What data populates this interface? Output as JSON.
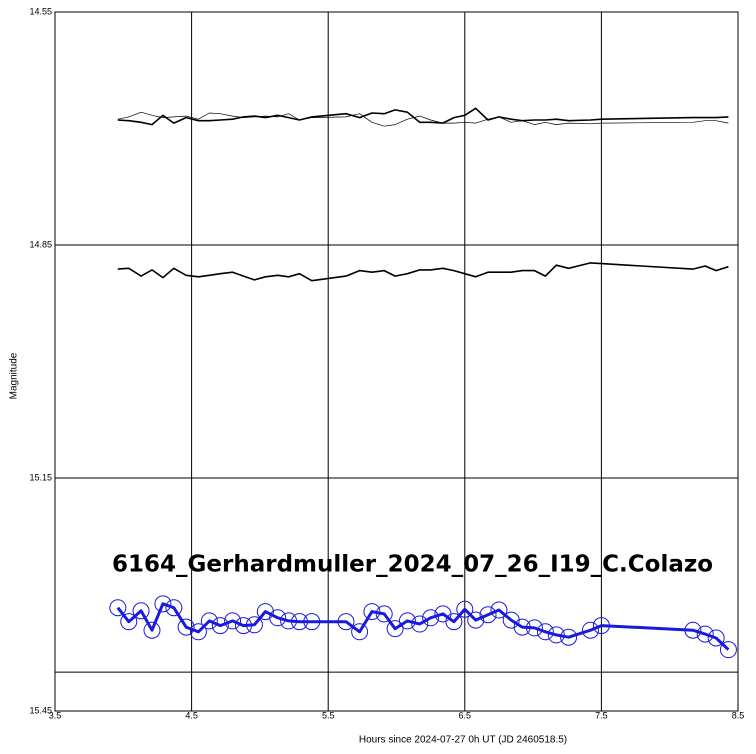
{
  "chart_data": {
    "type": "line",
    "annotation": "6164_Gerhardmuller_2024_07_26_I19_C.Colazo",
    "annotation_color": "#1a1adb",
    "x_label": "Hours since 2024-07-27 0h UT (JD 2460518.5)",
    "y_label": "Magnitude",
    "xlim": [
      3.5,
      8.5
    ],
    "xticks": [
      3.5,
      4.5,
      5.5,
      6.5,
      7.5,
      8.5
    ],
    "ylim": [
      15.45,
      14.55
    ],
    "yticks": [
      14.55,
      14.85,
      15.15,
      15.45
    ],
    "y_inverted": true,
    "grid": true,
    "hline": 15.4,
    "x": [
      3.96,
      4.04,
      4.13,
      4.21,
      4.29,
      4.37,
      4.46,
      4.55,
      4.63,
      4.71,
      4.8,
      4.88,
      4.96,
      5.04,
      5.13,
      5.21,
      5.29,
      5.38,
      5.63,
      5.73,
      5.82,
      5.91,
      5.99,
      6.08,
      6.17,
      6.25,
      6.34,
      6.42,
      6.5,
      6.58,
      6.67,
      6.75,
      6.84,
      6.92,
      7.01,
      7.09,
      7.17,
      7.26,
      7.42,
      7.5,
      8.17,
      8.26,
      8.34,
      8.43
    ],
    "series": [
      {
        "color": "#000000",
        "line_width": 1.6,
        "values": [
          14.689,
          14.69,
          14.692,
          14.695,
          14.683,
          14.693,
          14.686,
          14.69,
          14.69,
          14.689,
          14.688,
          14.685,
          14.684,
          14.686,
          14.683,
          14.686,
          14.689,
          14.685,
          14.681,
          14.686,
          14.68,
          14.681,
          14.676,
          14.679,
          14.692,
          14.692,
          14.693,
          14.686,
          14.683,
          14.674,
          14.689,
          14.685,
          14.688,
          14.69,
          14.689,
          14.689,
          14.688,
          14.69,
          14.689,
          14.688,
          14.686,
          14.686,
          14.686,
          14.685
        ]
      },
      {
        "color": "#000000",
        "line_width": 0.7,
        "values": [
          14.688,
          14.685,
          14.679,
          14.683,
          14.686,
          14.685,
          14.684,
          14.688,
          14.68,
          14.681,
          14.684,
          14.686,
          14.685,
          14.684,
          14.685,
          14.681,
          14.689,
          14.686,
          14.685,
          14.681,
          14.692,
          14.697,
          14.695,
          14.688,
          14.684,
          14.689,
          14.693,
          14.693,
          14.692,
          14.693,
          14.688,
          14.685,
          14.692,
          14.69,
          14.695,
          14.692,
          14.695,
          14.693,
          14.694,
          14.693,
          14.692,
          14.69,
          14.69,
          14.693
        ]
      },
      {
        "color": "#000000",
        "line_width": 1.6,
        "values": [
          14.881,
          14.88,
          14.89,
          14.882,
          14.892,
          14.88,
          14.889,
          14.891,
          14.889,
          14.887,
          14.885,
          14.89,
          14.895,
          14.891,
          14.889,
          14.891,
          14.887,
          14.896,
          14.89,
          14.883,
          14.885,
          14.883,
          14.89,
          14.887,
          14.882,
          14.882,
          14.88,
          14.883,
          14.887,
          14.891,
          14.885,
          14.885,
          14.885,
          14.883,
          14.883,
          14.89,
          14.876,
          14.88,
          14.873,
          14.874,
          14.881,
          14.877,
          14.883,
          14.878
        ]
      },
      {
        "color": "#1a1adb",
        "line_width": 3,
        "marker": "circle",
        "values": [
          15.317,
          15.335,
          15.321,
          15.346,
          15.312,
          15.317,
          15.342,
          15.348,
          15.334,
          15.34,
          15.334,
          15.34,
          15.339,
          15.322,
          15.33,
          15.334,
          15.335,
          15.335,
          15.335,
          15.348,
          15.322,
          15.325,
          15.344,
          15.334,
          15.338,
          15.33,
          15.325,
          15.335,
          15.319,
          15.333,
          15.326,
          15.32,
          15.333,
          15.342,
          15.343,
          15.348,
          15.352,
          15.355,
          15.346,
          15.34,
          15.346,
          15.351,
          15.356,
          15.371
        ]
      }
    ]
  }
}
